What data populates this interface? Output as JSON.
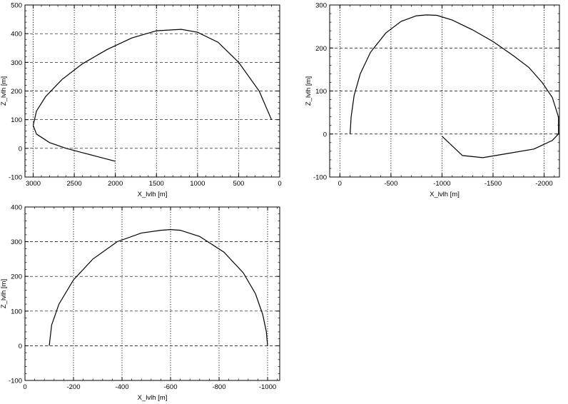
{
  "colors": {
    "background": "#ffffff",
    "ink": "#000000"
  },
  "chart_data": [
    {
      "type": "line",
      "xlabel": "X_lvlh [m]",
      "ylabel": "Z_lvlh [m]",
      "xlim": [
        3100,
        0
      ],
      "ylim": [
        500,
        -100
      ],
      "x_ticks": [
        3000,
        2500,
        2000,
        1500,
        1000,
        500,
        0
      ],
      "x_tick_labels": [
        "3000",
        "2500",
        "2000",
        "1500",
        "1000",
        "500",
        "0"
      ],
      "y_ticks": [
        -100,
        0,
        100,
        200,
        300,
        400,
        500
      ],
      "y_tick_labels": [
        "-100",
        "0",
        "100",
        "200",
        "300",
        "400",
        "500"
      ],
      "grid": true,
      "series": [
        {
          "x": [
            100,
            250,
            500,
            750,
            1000,
            1200,
            1500,
            1800,
            2100,
            2400,
            2650,
            2850,
            2960,
            3000,
            2960,
            2800,
            2600,
            2400,
            2200,
            2000
          ],
          "y": [
            100,
            200,
            300,
            370,
            405,
            415,
            410,
            385,
            345,
            295,
            240,
            180,
            130,
            80,
            50,
            20,
            0,
            -15,
            -30,
            -45
          ]
        }
      ]
    },
    {
      "type": "line",
      "xlabel": "X_lvlh [m]",
      "ylabel": "Z_lvlh [m]",
      "xlim": [
        100,
        -2150
      ],
      "ylim": [
        300,
        -100
      ],
      "x_ticks": [
        0,
        -500,
        -1000,
        -1500,
        -2000
      ],
      "x_tick_labels": [
        "0",
        "-500",
        "-1000",
        "-1500",
        "-2000"
      ],
      "y_ticks": [
        -100,
        0,
        100,
        200,
        300
      ],
      "y_tick_labels": [
        "-100",
        "0",
        "100",
        "200",
        "300"
      ],
      "grid": true,
      "series": [
        {
          "x": [
            -100,
            -110,
            -140,
            -200,
            -300,
            -450,
            -600,
            -750,
            -850,
            -950,
            -1100,
            -1300,
            -1500,
            -1700,
            -1850,
            -1980,
            -2080,
            -2140,
            -2140,
            -2080,
            -1900,
            -1650,
            -1400,
            -1200,
            -1000
          ],
          "y": [
            0,
            40,
            90,
            140,
            190,
            235,
            262,
            275,
            277,
            276,
            265,
            242,
            215,
            182,
            155,
            120,
            85,
            40,
            0,
            -15,
            -35,
            -45,
            -55,
            -50,
            -5
          ]
        }
      ]
    },
    {
      "type": "line",
      "xlabel": "X_lvlh [m]",
      "ylabel": "Z_lvlh [m]",
      "xlim": [
        0,
        -1050
      ],
      "ylim": [
        400,
        -100
      ],
      "x_ticks": [
        0,
        -200,
        -400,
        -600,
        -800,
        -1000
      ],
      "x_tick_labels": [
        "0",
        "-200",
        "-400",
        "-600",
        "-800",
        "-1000"
      ],
      "y_ticks": [
        -100,
        0,
        100,
        200,
        300,
        400
      ],
      "y_tick_labels": [
        "-100",
        "0",
        "100",
        "200",
        "300",
        "400"
      ],
      "grid": true,
      "series": [
        {
          "x": [
            -100,
            -110,
            -140,
            -200,
            -280,
            -380,
            -480,
            -560,
            -600,
            -640,
            -720,
            -820,
            -900,
            -950,
            -980,
            -995,
            -1000
          ],
          "y": [
            0,
            60,
            120,
            190,
            250,
            300,
            325,
            333,
            335,
            333,
            315,
            270,
            210,
            150,
            90,
            40,
            0
          ]
        }
      ]
    }
  ]
}
